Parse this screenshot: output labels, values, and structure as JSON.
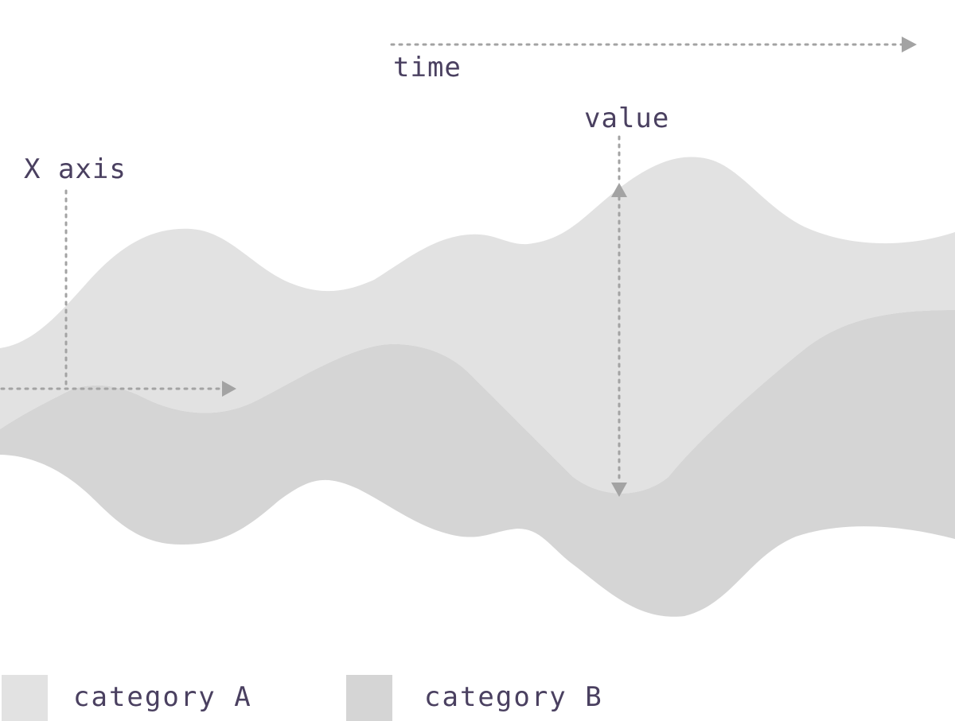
{
  "annotations": {
    "time_label": "time",
    "value_label": "value",
    "x_axis_label": "X axis"
  },
  "legend": [
    {
      "label": "category A",
      "color": "#e2e2e2"
    },
    {
      "label": "category B",
      "color": "#d5d5d5"
    }
  ],
  "colors": {
    "category_a": "#e2e2e2",
    "category_b": "#d5d5d5",
    "guide": "#a3a3a3",
    "text": "#4a4060"
  }
}
